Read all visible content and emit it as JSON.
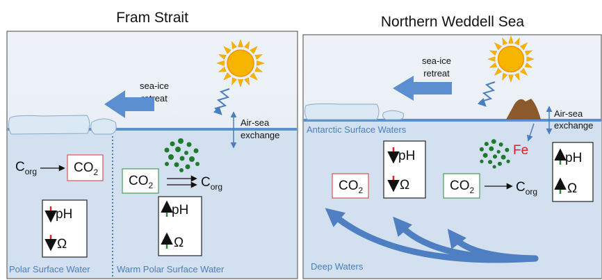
{
  "left": {
    "title": "Fram Strait",
    "ice_label": [
      "sea-ice",
      "retreat"
    ],
    "exchange_label": [
      "Air-sea",
      "exchange"
    ],
    "water_labels": [
      "Polar Surface Water",
      "Warm Polar Surface Water"
    ],
    "polar": {
      "carbon": {
        "base": "C",
        "sub": "org"
      },
      "co2": {
        "base": "CO",
        "sub": "2"
      },
      "ph": "pH",
      "omega": "Ω"
    },
    "warm": {
      "co2": {
        "base": "CO",
        "sub": "2"
      },
      "carbon": {
        "base": "C",
        "sub": "org"
      },
      "ph": "pH",
      "omega": "Ω"
    }
  },
  "right": {
    "title": "Northern Weddell Sea",
    "ice_label": [
      "sea-ice",
      "retreat"
    ],
    "exchange_label": [
      "Air-sea",
      "exchange"
    ],
    "surface_label": "Antarctic Surface Waters",
    "deep_label": "Deep Waters",
    "iron": "Fe",
    "surface_box": {
      "ph": "pH",
      "omega": "Ω"
    },
    "deep_co2": {
      "base": "CO",
      "sub": "2"
    },
    "fertilized": {
      "co2": {
        "base": "CO",
        "sub": "2"
      },
      "carbon": {
        "base": "C",
        "sub": "org"
      },
      "ph": "pH",
      "omega": "Ω"
    }
  }
}
